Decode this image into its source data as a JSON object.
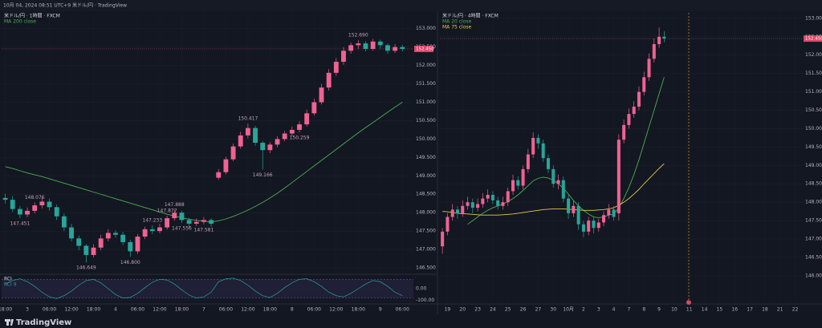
{
  "header": {
    "title": "10月 04, 2024 08:51 UTC+9  米ドル/円 · TradingView"
  },
  "footer": {
    "brand": "TradingView"
  },
  "chart_data": [
    {
      "type": "candlestick",
      "title": "米ドル/円 · 1時間 · FXCM",
      "up_color": "#f06292",
      "down_color": "#26a69a",
      "ylim": [
        146.37,
        153.43
      ],
      "yticks": [
        {
          "value": 153,
          "label": "153.000"
        },
        {
          "value": 152.5,
          "label": "152.500"
        },
        {
          "value": 152,
          "label": "152.000"
        },
        {
          "value": 151.5,
          "label": "151.500"
        },
        {
          "value": 151,
          "label": "151.000"
        },
        {
          "value": 150.5,
          "label": "150.500"
        },
        {
          "value": 150,
          "label": "150.000"
        },
        {
          "value": 149.5,
          "label": "149.500"
        },
        {
          "value": 149,
          "label": "149.000"
        },
        {
          "value": 148.5,
          "label": "148.500"
        },
        {
          "value": 148,
          "label": "148.000"
        },
        {
          "value": 147.5,
          "label": "147.500"
        },
        {
          "value": 147,
          "label": "147.000"
        },
        {
          "value": 146.5,
          "label": "146.500"
        }
      ],
      "xticks": [
        {
          "value": 0,
          "label": "18:00"
        },
        {
          "value": 3,
          "label": "3"
        },
        {
          "value": 6,
          "label": "06:00"
        },
        {
          "value": 9,
          "label": "12:00"
        },
        {
          "value": 12,
          "label": "18:00"
        },
        {
          "value": 15,
          "label": "4"
        },
        {
          "value": 18,
          "label": "06:00"
        },
        {
          "value": 21,
          "label": "12:00"
        },
        {
          "value": 24,
          "label": "18:00"
        },
        {
          "value": 27,
          "label": "7"
        },
        {
          "value": 30,
          "label": "06:00"
        },
        {
          "value": 33,
          "label": "12:00"
        },
        {
          "value": 36,
          "label": "18:00"
        },
        {
          "value": 39,
          "label": "8"
        },
        {
          "value": 42,
          "label": "06:00"
        },
        {
          "value": 45,
          "label": "12:00"
        },
        {
          "value": 48,
          "label": "18:00"
        },
        {
          "value": 51,
          "label": "9"
        },
        {
          "value": 54,
          "label": "06:00"
        }
      ],
      "open": [
        148.4,
        148.35,
        148.1,
        147.95,
        148.05,
        148.2,
        148.3,
        148.15,
        147.9,
        147.6,
        147.3,
        147.1,
        146.85,
        147.05,
        147.3,
        147.45,
        147.4,
        147.2,
        146.95,
        147.35,
        147.55,
        147.5,
        147.6,
        147.85,
        148.0,
        147.8,
        147.7,
        147.75,
        147.8,
        148.95,
        149.1,
        149.45,
        149.8,
        150.1,
        150.3,
        149.9,
        149.7,
        149.85,
        150.0,
        150.15,
        150.25,
        150.4,
        150.7,
        151.0,
        151.4,
        151.8,
        152.1,
        152.4,
        152.55,
        152.6,
        152.45,
        152.65,
        152.55,
        152.4,
        152.5
      ],
      "high": [
        148.52,
        148.45,
        148.18,
        148.14,
        148.28,
        148.42,
        148.38,
        148.22,
        147.98,
        147.7,
        147.38,
        147.15,
        147.14,
        147.4,
        147.55,
        147.52,
        147.48,
        147.26,
        147.42,
        147.62,
        147.66,
        147.7,
        147.92,
        148.08,
        148.05,
        147.86,
        147.84,
        147.88,
        147.85,
        149.18,
        149.52,
        149.88,
        150.2,
        150.42,
        150.36,
        149.95,
        149.92,
        150.08,
        150.22,
        150.34,
        150.48,
        150.8,
        151.1,
        151.5,
        151.9,
        152.2,
        152.5,
        152.62,
        152.69,
        152.66,
        152.72,
        152.7,
        152.6,
        152.58,
        152.56
      ],
      "low": [
        148.25,
        148.02,
        147.85,
        147.88,
        147.98,
        148.12,
        148.05,
        147.8,
        147.5,
        147.22,
        146.98,
        146.65,
        146.78,
        146.98,
        147.22,
        147.32,
        147.12,
        146.8,
        146.88,
        147.28,
        147.42,
        147.44,
        147.54,
        147.78,
        147.72,
        147.58,
        147.64,
        147.68,
        147.62,
        148.9,
        149.04,
        149.4,
        149.74,
        150.02,
        149.82,
        149.17,
        149.62,
        149.78,
        149.94,
        150.08,
        150.18,
        150.34,
        150.64,
        150.94,
        151.32,
        151.72,
        152.02,
        152.32,
        152.45,
        152.38,
        152.4,
        152.46,
        152.32,
        152.34,
        152.38
      ],
      "close": [
        148.35,
        148.1,
        147.95,
        148.05,
        148.2,
        148.3,
        148.15,
        147.9,
        147.6,
        147.3,
        147.1,
        146.85,
        147.05,
        147.3,
        147.45,
        147.4,
        147.2,
        146.95,
        147.35,
        147.55,
        147.5,
        147.6,
        147.85,
        148.0,
        147.8,
        147.7,
        147.75,
        147.8,
        147.7,
        149.1,
        149.45,
        149.8,
        150.1,
        150.3,
        149.9,
        149.7,
        149.85,
        150.0,
        150.15,
        150.25,
        150.4,
        150.7,
        151.0,
        151.4,
        151.8,
        152.1,
        152.4,
        152.55,
        152.6,
        152.45,
        152.65,
        152.55,
        152.4,
        152.5,
        152.45
      ],
      "series": [
        {
          "name": "MA 200 close",
          "color": "#4caf50",
          "values": [
            149.25,
            149.2,
            149.14,
            149.08,
            149.03,
            148.98,
            148.92,
            148.86,
            148.8,
            148.74,
            148.68,
            148.62,
            148.56,
            148.5,
            148.44,
            148.38,
            148.32,
            148.26,
            148.2,
            148.14,
            148.08,
            148.02,
            147.96,
            147.91,
            147.86,
            147.82,
            147.79,
            147.77,
            147.75,
            147.78,
            147.83,
            147.9,
            147.98,
            148.07,
            148.17,
            148.28,
            148.4,
            148.53,
            148.67,
            148.82,
            148.97,
            149.12,
            149.27,
            149.42,
            149.57,
            149.72,
            149.87,
            150.02,
            150.17,
            150.31,
            150.45,
            150.59,
            150.73,
            150.87,
            151.0
          ]
        }
      ],
      "annotations": [
        "148.076",
        "147.451",
        "146.649",
        "146.800",
        "147.233",
        "147.888",
        "147.556",
        "147.877",
        "147.581",
        "150.417",
        "149.166",
        "150.259",
        "152.690"
      ],
      "price_tag": "152.450"
    },
    {
      "type": "line",
      "title": "RCI",
      "ylim": [
        -110,
        110
      ],
      "yticks": [
        {
          "value": 0,
          "label": "0.00"
        },
        {
          "value": -100,
          "label": "-100.00"
        }
      ],
      "levels": [
        80,
        -80
      ],
      "series": [
        {
          "name": "RCI 9",
          "color": "#26a69a",
          "values": [
            40,
            70,
            85,
            60,
            20,
            -30,
            -70,
            -85,
            -60,
            -20,
            30,
            70,
            80,
            50,
            0,
            -50,
            -80,
            -75,
            -40,
            10,
            55,
            80,
            75,
            40,
            -10,
            -55,
            -80,
            -70,
            -30,
            60,
            85,
            90,
            70,
            30,
            -20,
            -60,
            -75,
            -40,
            10,
            50,
            80,
            85,
            60,
            20,
            -30,
            -60,
            -70,
            -40,
            0,
            40,
            70,
            60,
            20,
            -30,
            -60
          ]
        }
      ]
    },
    {
      "type": "candlestick",
      "title": "米ドル/円 · 4時間 · FXCM",
      "up_color": "#f06292",
      "down_color": "#26a69a",
      "ylim": [
        145.3,
        153.15
      ],
      "yticks": [
        {
          "value": 153,
          "label": "153.000"
        },
        {
          "value": 152.5,
          "label": "152.500"
        },
        {
          "value": 152,
          "label": "152.000"
        },
        {
          "value": 151.5,
          "label": "151.500"
        },
        {
          "value": 151,
          "label": "151.000"
        },
        {
          "value": 150.5,
          "label": "150.500"
        },
        {
          "value": 150,
          "label": "150.000"
        },
        {
          "value": 149.5,
          "label": "149.500"
        },
        {
          "value": 149,
          "label": "149.000"
        },
        {
          "value": 148.5,
          "label": "148.500"
        },
        {
          "value": 148,
          "label": "148.000"
        },
        {
          "value": 147.5,
          "label": "147.500"
        },
        {
          "value": 147,
          "label": "147.000"
        },
        {
          "value": 146.5,
          "label": "146.500"
        },
        {
          "value": 146,
          "label": "146.000"
        }
      ],
      "xticks": [
        {
          "value": 1,
          "label": "19"
        },
        {
          "value": 4,
          "label": "20"
        },
        {
          "value": 7,
          "label": "23"
        },
        {
          "value": 10,
          "label": "24"
        },
        {
          "value": 13,
          "label": "25"
        },
        {
          "value": 16,
          "label": "26"
        },
        {
          "value": 19,
          "label": "27"
        },
        {
          "value": 22,
          "label": "30"
        },
        {
          "value": 25,
          "label": "10月"
        },
        {
          "value": 28,
          "label": "2"
        },
        {
          "value": 31,
          "label": "3"
        },
        {
          "value": 34,
          "label": "4"
        },
        {
          "value": 37,
          "label": "7"
        },
        {
          "value": 40,
          "label": "8"
        },
        {
          "value": 43,
          "label": "9"
        },
        {
          "value": 46,
          "label": "10"
        },
        {
          "value": 49,
          "label": "11"
        },
        {
          "value": 52,
          "label": "14"
        },
        {
          "value": 55,
          "label": "15"
        },
        {
          "value": 58,
          "label": "16"
        },
        {
          "value": 61,
          "label": "17"
        },
        {
          "value": 64,
          "label": "18"
        },
        {
          "value": 67,
          "label": "21"
        },
        {
          "value": 70,
          "label": "22"
        }
      ],
      "open": [
        146.8,
        147.2,
        147.6,
        147.8,
        147.7,
        147.9,
        148.0,
        147.85,
        147.95,
        148.1,
        148.2,
        148.05,
        147.9,
        148.0,
        148.3,
        148.6,
        148.45,
        148.9,
        149.3,
        149.75,
        149.6,
        149.2,
        148.9,
        148.5,
        148.6,
        148.1,
        147.7,
        147.9,
        147.4,
        147.2,
        147.5,
        147.3,
        147.45,
        147.65,
        147.8,
        147.7,
        149.7,
        150.1,
        150.4,
        150.6,
        151.0,
        151.4,
        151.9,
        152.3,
        152.5
      ],
      "high": [
        147.3,
        147.7,
        147.95,
        147.9,
        148.05,
        148.15,
        148.1,
        148.1,
        148.25,
        148.35,
        148.3,
        148.15,
        148.15,
        148.4,
        148.75,
        148.7,
        149.0,
        149.45,
        149.9,
        149.85,
        149.7,
        149.3,
        149.0,
        148.75,
        148.7,
        148.2,
        148.05,
        148.0,
        147.5,
        147.6,
        147.6,
        147.55,
        147.75,
        147.95,
        147.9,
        149.85,
        150.25,
        150.55,
        150.75,
        151.15,
        151.55,
        152.05,
        152.45,
        152.75,
        152.65
      ],
      "low": [
        146.6,
        147.1,
        147.5,
        147.55,
        147.6,
        147.8,
        147.7,
        147.75,
        147.85,
        148.0,
        147.95,
        147.8,
        147.8,
        147.9,
        148.2,
        148.35,
        148.35,
        148.8,
        149.2,
        149.45,
        149.1,
        148.8,
        148.4,
        148.35,
        148.0,
        147.55,
        147.6,
        147.25,
        147.05,
        147.1,
        147.15,
        147.2,
        147.35,
        147.55,
        147.5,
        147.5,
        149.6,
        150.0,
        150.3,
        150.5,
        150.9,
        151.3,
        151.8,
        152.2,
        152.35
      ],
      "close": [
        147.2,
        147.6,
        147.8,
        147.7,
        147.9,
        148.0,
        147.85,
        147.95,
        148.1,
        148.2,
        148.05,
        147.9,
        148.0,
        148.3,
        148.6,
        148.45,
        148.9,
        149.3,
        149.75,
        149.6,
        149.2,
        148.9,
        148.5,
        148.6,
        148.1,
        147.7,
        147.9,
        147.4,
        147.2,
        147.5,
        147.3,
        147.45,
        147.65,
        147.8,
        147.6,
        149.7,
        150.1,
        150.4,
        150.6,
        151.0,
        151.4,
        151.9,
        152.3,
        152.5,
        152.45
      ],
      "series": [
        {
          "name": "MA 20 close",
          "color": "#4caf50",
          "values": [
            null,
            null,
            null,
            null,
            null,
            147.4,
            147.5,
            147.6,
            147.7,
            147.78,
            147.85,
            147.9,
            147.95,
            148.02,
            148.1,
            148.2,
            148.32,
            148.45,
            148.58,
            148.65,
            148.68,
            148.66,
            148.6,
            148.5,
            148.38,
            148.22,
            148.05,
            147.9,
            147.78,
            147.68,
            147.6,
            147.58,
            147.6,
            147.65,
            147.68,
            147.85,
            148.1,
            148.4,
            148.75,
            149.15,
            149.6,
            150.05,
            150.5,
            150.95,
            151.4
          ]
        },
        {
          "name": "MA 75 close",
          "color": "#e6c84a",
          "values": [
            147.75,
            147.74,
            147.72,
            147.7,
            147.69,
            147.68,
            147.67,
            147.66,
            147.65,
            147.65,
            147.65,
            147.65,
            147.66,
            147.67,
            147.68,
            147.7,
            147.72,
            147.74,
            147.76,
            147.78,
            147.8,
            147.81,
            147.82,
            147.82,
            147.82,
            147.81,
            147.8,
            147.79,
            147.78,
            147.78,
            147.78,
            147.79,
            147.8,
            147.82,
            147.85,
            147.92,
            148.0,
            148.1,
            148.22,
            148.35,
            148.5,
            148.64,
            148.78,
            148.92,
            149.05
          ]
        }
      ],
      "price_tag": "152.450"
    }
  ]
}
